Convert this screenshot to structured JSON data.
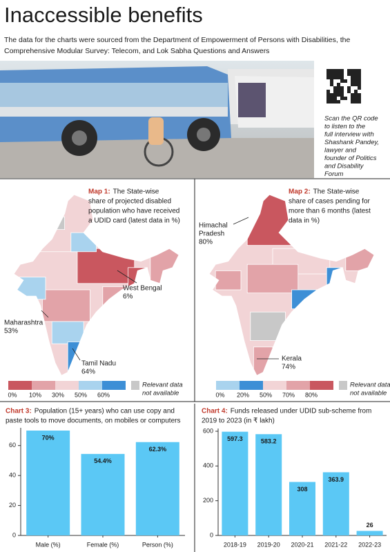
{
  "header": {
    "title": "Inaccessible benefits",
    "subtitle_lines": [
      "The data for the charts were sourced from the Department of Empowerment of Persons with Disabilities, the",
      "Comprehensive Modular Survey: Telecom, and Lok Sabha Questions and Answers"
    ]
  },
  "photo": {
    "caption_lines": [
      "Scan the QR code",
      "to listen to the",
      "full interview with",
      "Shashank Pandey,",
      "lawyer and",
      "founder of Politics",
      "and Disability",
      "Forum"
    ]
  },
  "maps": [
    {
      "label": "Map 1:",
      "title_lines": [
        "The State-wise",
        "share of projected disabled",
        "population who have received",
        "a UDID card (latest data in %)"
      ],
      "annotations": [
        {
          "name_lines": [
            "West Bengal"
          ],
          "value": "6%"
        },
        {
          "name_lines": [
            "Maharashtra"
          ],
          "value": "53%"
        },
        {
          "name_lines": [
            "Tamil Nadu"
          ],
          "value": "64%"
        }
      ],
      "legend": {
        "ticks": [
          "0%",
          "10%",
          "30%",
          "50%",
          "60%"
        ],
        "colors": [
          "#c9575f",
          "#e2a3a8",
          "#f2d4d6",
          "#a9d3ee",
          "#3d8fd6"
        ],
        "na_color": "#c8c8c8",
        "na_label_lines": [
          "Relevant data",
          "not available"
        ]
      }
    },
    {
      "label": "Map 2:",
      "title_lines": [
        "The State-wise",
        "share of cases pending for",
        "more than 6 months (latest",
        "data in %)"
      ],
      "annotations": [
        {
          "name_lines": [
            "Himachal",
            "Pradesh"
          ],
          "value": "80%"
        },
        {
          "name_lines": [
            "Kerala"
          ],
          "value": "74%"
        }
      ],
      "legend": {
        "ticks": [
          "0%",
          "20%",
          "50%",
          "70%",
          "80%"
        ],
        "colors": [
          "#a9d3ee",
          "#3d8fd6",
          "#f2d4d6",
          "#e2a3a8",
          "#c9575f"
        ],
        "na_color": "#c8c8c8",
        "na_label_lines": [
          "Relevant data",
          "not available"
        ]
      }
    }
  ],
  "chart_data": [
    {
      "type": "bar",
      "label": "Chart 3:",
      "title_lines": [
        "Population (15+ years) who can use copy and",
        "paste tools to move documents, on mobiles or computers"
      ],
      "categories": [
        "Male (%)",
        "Female (%)",
        "Person (%)"
      ],
      "values": [
        70,
        54.4,
        62.3
      ],
      "value_labels": [
        "70%",
        "54.4%",
        "62.3%"
      ],
      "color": "#5bc8f5",
      "ylim": [
        0,
        70
      ],
      "yticks": [
        0,
        20,
        40,
        60
      ]
    },
    {
      "type": "bar",
      "label": "Chart 4:",
      "title_lines": [
        "Funds released under UDID sub-scheme from",
        "2019 to 2023 (in ₹ lakh)"
      ],
      "categories": [
        "2018-19",
        "2019-20",
        "2020-21",
        "2021-22",
        "2022-23"
      ],
      "values": [
        597.3,
        583.2,
        308,
        363.9,
        26
      ],
      "color": "#5bc8f5",
      "ylim": [
        0,
        600
      ],
      "yticks": [
        0,
        200,
        400,
        600
      ]
    }
  ]
}
